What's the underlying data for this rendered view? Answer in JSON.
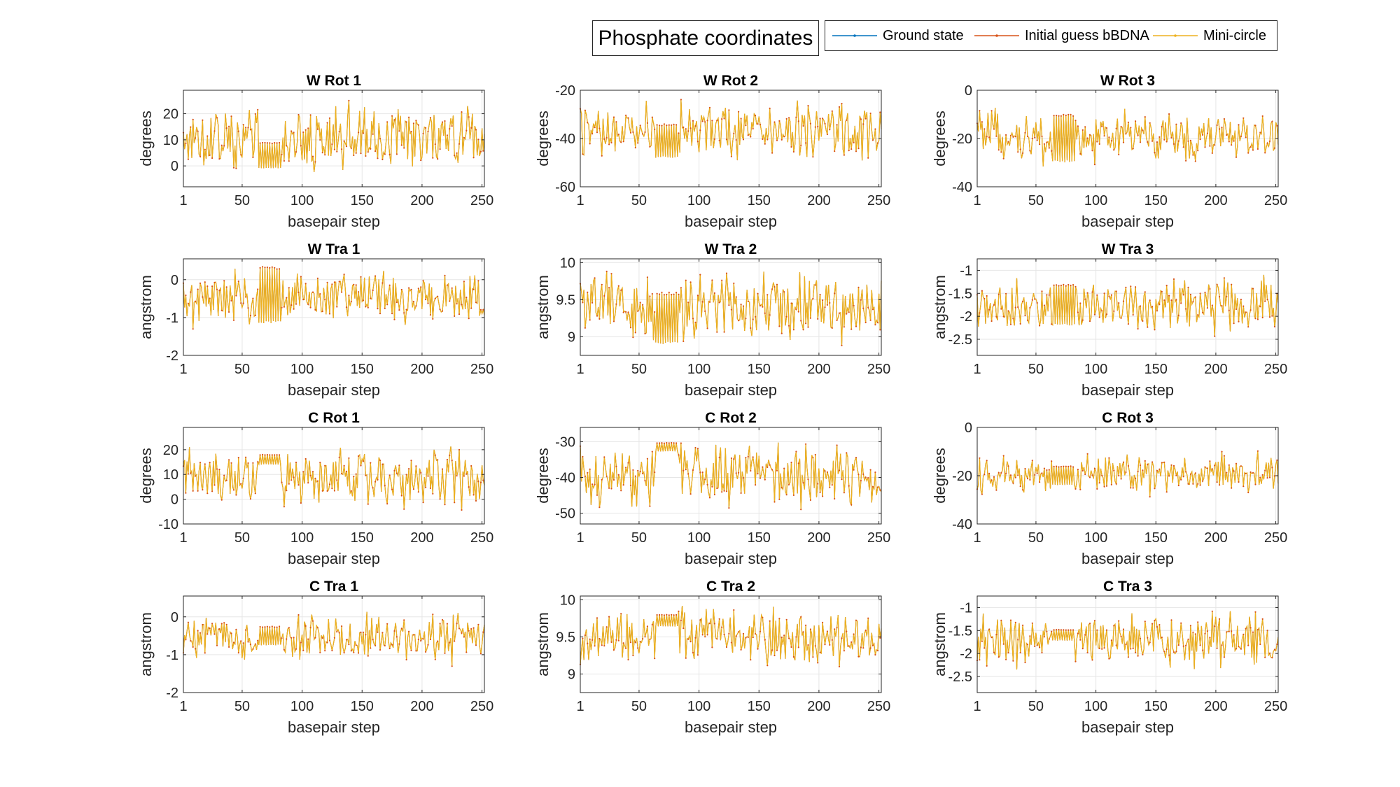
{
  "figure_title": "Phosphate coordinates",
  "legend": [
    {
      "name": "Ground state",
      "color": "#0072BD"
    },
    {
      "name": "Initial guess bBDNA",
      "color": "#D95319"
    },
    {
      "name": "Mini-circle",
      "color": "#EDB120"
    }
  ],
  "chart_data": [
    {
      "type": "line",
      "title": "W Rot 1",
      "xlabel": "basepair step",
      "ylabel": "degrees",
      "xlim": [
        1,
        252
      ],
      "xticks": [
        1,
        50,
        100,
        150,
        200,
        250
      ],
      "ylim": [
        -8,
        29
      ],
      "yticks": [
        0,
        10,
        20
      ],
      "grid": true,
      "signal": {
        "mean": 11,
        "amp": 9,
        "regular": [
          64,
          82
        ],
        "reg_mean": 4,
        "reg_amp": 5
      }
    },
    {
      "type": "line",
      "title": "W Rot 2",
      "xlabel": "basepair step",
      "ylabel": "degrees",
      "xlim": [
        1,
        252
      ],
      "xticks": [
        1,
        50,
        100,
        150,
        200,
        250
      ],
      "ylim": [
        -60,
        -20
      ],
      "yticks": [
        -60,
        -40,
        -20
      ],
      "grid": true,
      "signal": {
        "mean": -37,
        "amp": 9,
        "regular": [
          64,
          82
        ],
        "reg_mean": -41,
        "reg_amp": 7
      }
    },
    {
      "type": "line",
      "title": "W Rot 3",
      "xlabel": "basepair step",
      "ylabel": "degrees",
      "xlim": [
        1,
        252
      ],
      "xticks": [
        1,
        50,
        100,
        150,
        200,
        250
      ],
      "ylim": [
        -40,
        0
      ],
      "yticks": [
        -40,
        -20,
        0
      ],
      "grid": true,
      "signal": {
        "mean": -19,
        "amp": 8,
        "regular": [
          64,
          82
        ],
        "reg_mean": -20,
        "reg_amp": 10
      }
    },
    {
      "type": "line",
      "title": "W Tra 1",
      "xlabel": "basepair step",
      "ylabel": "angstrom",
      "xlim": [
        1,
        252
      ],
      "xticks": [
        1,
        50,
        100,
        150,
        200,
        250
      ],
      "ylim": [
        -2,
        0.55
      ],
      "yticks": [
        -2,
        -1,
        0
      ],
      "grid": true,
      "signal": {
        "mean": -0.5,
        "amp": 0.5,
        "regular": [
          64,
          82
        ],
        "reg_mean": -0.4,
        "reg_amp": 0.75
      }
    },
    {
      "type": "line",
      "title": "W Tra 2",
      "xlabel": "basepair step",
      "ylabel": "angstrom",
      "xlim": [
        1,
        252
      ],
      "xticks": [
        1,
        50,
        100,
        150,
        200,
        250
      ],
      "ylim": [
        8.75,
        10.05
      ],
      "yticks": [
        9,
        9.5,
        10
      ],
      "grid": true,
      "signal": {
        "mean": 9.45,
        "amp": 0.35,
        "regular": [
          64,
          82
        ],
        "reg_mean": 9.25,
        "reg_amp": 0.35
      }
    },
    {
      "type": "line",
      "title": "W Tra 3",
      "xlabel": "basepair step",
      "ylabel": "angstrom",
      "xlim": [
        1,
        252
      ],
      "xticks": [
        1,
        50,
        100,
        150,
        200,
        250
      ],
      "ylim": [
        -2.85,
        -0.75
      ],
      "yticks": [
        -2.5,
        -2,
        -1.5,
        -1
      ],
      "grid": true,
      "signal": {
        "mean": -1.75,
        "amp": 0.45,
        "regular": [
          64,
          82
        ],
        "reg_mean": -1.75,
        "reg_amp": 0.45
      }
    },
    {
      "type": "line",
      "title": "C Rot 1",
      "xlabel": "basepair step",
      "ylabel": "degrees",
      "xlim": [
        1,
        252
      ],
      "xticks": [
        1,
        50,
        100,
        150,
        200,
        250
      ],
      "ylim": [
        -10,
        29
      ],
      "yticks": [
        -10,
        0,
        10,
        20
      ],
      "grid": true,
      "signal": {
        "mean": 9,
        "amp": 9,
        "regular": [
          64,
          82
        ],
        "reg_mean": 16,
        "reg_amp": 2
      }
    },
    {
      "type": "line",
      "title": "C Rot 2",
      "xlabel": "basepair step",
      "ylabel": "degrees",
      "xlim": [
        1,
        252
      ],
      "xticks": [
        1,
        50,
        100,
        150,
        200,
        250
      ],
      "ylim": [
        -53,
        -26
      ],
      "yticks": [
        -50,
        -40,
        -30
      ],
      "grid": true,
      "signal": {
        "mean": -39,
        "amp": 7,
        "regular": [
          64,
          82
        ],
        "reg_mean": -31.5,
        "reg_amp": 1.2
      }
    },
    {
      "type": "line",
      "title": "C Rot 3",
      "xlabel": "basepair step",
      "ylabel": "degrees",
      "xlim": [
        1,
        252
      ],
      "xticks": [
        1,
        50,
        100,
        150,
        200,
        250
      ],
      "ylim": [
        -40,
        0
      ],
      "yticks": [
        -40,
        -20,
        0
      ],
      "grid": true,
      "signal": {
        "mean": -19,
        "amp": 6,
        "regular": [
          64,
          82
        ],
        "reg_mean": -20,
        "reg_amp": 4
      }
    },
    {
      "type": "line",
      "title": "C Tra 1",
      "xlabel": "basepair step",
      "ylabel": "angstrom",
      "xlim": [
        1,
        252
      ],
      "xticks": [
        1,
        50,
        100,
        150,
        200,
        250
      ],
      "ylim": [
        -2,
        0.55
      ],
      "yticks": [
        -2,
        -1,
        0
      ],
      "grid": true,
      "signal": {
        "mean": -0.55,
        "amp": 0.45,
        "regular": [
          64,
          82
        ],
        "reg_mean": -0.5,
        "reg_amp": 0.25
      }
    },
    {
      "type": "line",
      "title": "C Tra 2",
      "xlabel": "basepair step",
      "ylabel": "angstrom",
      "xlim": [
        1,
        252
      ],
      "xticks": [
        1,
        50,
        100,
        150,
        200,
        250
      ],
      "ylim": [
        8.75,
        10.05
      ],
      "yticks": [
        9,
        9.5,
        10
      ],
      "grid": true,
      "signal": {
        "mean": 9.5,
        "amp": 0.3,
        "regular": [
          64,
          82
        ],
        "reg_mean": 9.72,
        "reg_amp": 0.08
      }
    },
    {
      "type": "line",
      "title": "C Tra 3",
      "xlabel": "basepair step",
      "ylabel": "angstrom",
      "xlim": [
        1,
        252
      ],
      "xticks": [
        1,
        50,
        100,
        150,
        200,
        250
      ],
      "ylim": [
        -2.85,
        -0.75
      ],
      "yticks": [
        -2.5,
        -2,
        -1.5,
        -1
      ],
      "grid": true,
      "signal": {
        "mean": -1.7,
        "amp": 0.45,
        "regular": [
          64,
          82
        ],
        "reg_mean": -1.6,
        "reg_amp": 0.12
      }
    }
  ]
}
